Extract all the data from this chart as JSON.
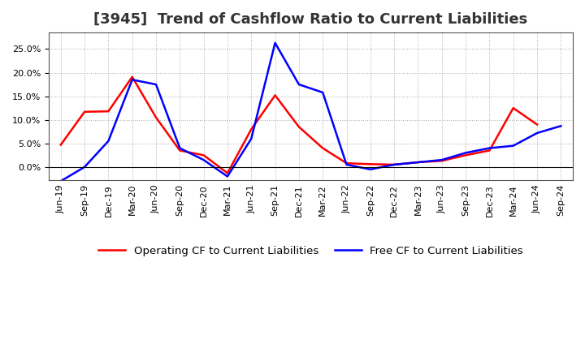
{
  "title": "[3945]  Trend of Cashflow Ratio to Current Liabilities",
  "x_labels": [
    "Jun-19",
    "Sep-19",
    "Dec-19",
    "Mar-20",
    "Jun-20",
    "Sep-20",
    "Dec-20",
    "Mar-21",
    "Jun-21",
    "Sep-21",
    "Dec-21",
    "Mar-22",
    "Jun-22",
    "Sep-22",
    "Dec-22",
    "Mar-23",
    "Jun-23",
    "Sep-23",
    "Dec-23",
    "Mar-24",
    "Jun-24",
    "Sep-24"
  ],
  "operating_cf": [
    0.047,
    0.117,
    0.118,
    0.191,
    0.105,
    0.035,
    0.025,
    -0.013,
    0.08,
    0.152,
    0.085,
    0.04,
    0.008,
    0.006,
    0.005,
    0.01,
    0.013,
    0.025,
    0.035,
    0.125,
    0.09,
    null
  ],
  "free_cf": [
    -0.03,
    0.0,
    0.055,
    0.185,
    0.175,
    0.04,
    0.015,
    -0.02,
    0.06,
    0.263,
    0.175,
    0.158,
    0.005,
    -0.005,
    0.005,
    0.01,
    0.015,
    0.03,
    0.04,
    0.045,
    0.072,
    0.087
  ],
  "operating_color": "#FF0000",
  "free_color": "#0000FF",
  "background_color": "#FFFFFF",
  "plot_bg_color": "#FFFFFF",
  "grid_color": "#AAAAAA",
  "ylim": [
    -0.028,
    0.285
  ],
  "yticks": [
    0.0,
    0.05,
    0.1,
    0.15,
    0.2,
    0.25
  ],
  "title_fontsize": 13,
  "legend_fontsize": 9.5,
  "tick_fontsize": 8.0
}
